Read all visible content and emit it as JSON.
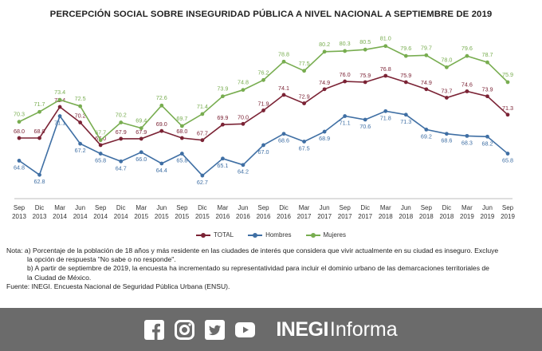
{
  "title": "PERCEPCIÓN SOCIAL SOBRE INSEGURIDAD PÚBLICA A NIVEL NACIONAL A SEPTIEMBRE DE 2019",
  "chart_data": {
    "type": "line",
    "title": "PERCEPCIÓN SOCIAL SOBRE INSEGURIDAD PÚBLICA A NIVEL NACIONAL A SEPTIEMBRE DE 2019",
    "categories": [
      [
        "Sep",
        "2013"
      ],
      [
        "Dic",
        "2013"
      ],
      [
        "Mar",
        "2014"
      ],
      [
        "Jun",
        "2014"
      ],
      [
        "Sep",
        "2014"
      ],
      [
        "Dic",
        "2014"
      ],
      [
        "Mar",
        "2015"
      ],
      [
        "Jun",
        "2015"
      ],
      [
        "Sep",
        "2015"
      ],
      [
        "Dic",
        "2015"
      ],
      [
        "Mar",
        "2016"
      ],
      [
        "Jun",
        "2016"
      ],
      [
        "Sep",
        "2016"
      ],
      [
        "Dic",
        "2016"
      ],
      [
        "Mar",
        "2017"
      ],
      [
        "Jun",
        "2017"
      ],
      [
        "Sep",
        "2017"
      ],
      [
        "Dic",
        "2017"
      ],
      [
        "Mar",
        "2018"
      ],
      [
        "Jun",
        "2018"
      ],
      [
        "Sep",
        "2018"
      ],
      [
        "Dic",
        "2018"
      ],
      [
        "Mar",
        "2019"
      ],
      [
        "Jun",
        "2019"
      ],
      [
        "Sep",
        "2019"
      ]
    ],
    "ylim": [
      60,
      83
    ],
    "legend_position": "bottom",
    "grid": false,
    "series": [
      {
        "name": "TOTAL",
        "color": "#7b2335",
        "values": [
          68.0,
          68.0,
          72.4,
          70.2,
          67.0,
          67.9,
          67.9,
          69.0,
          68.0,
          67.7,
          69.9,
          70.0,
          71.9,
          74.1,
          72.9,
          74.9,
          76.0,
          75.9,
          76.8,
          75.9,
          74.9,
          73.7,
          74.6,
          73.9,
          71.3
        ]
      },
      {
        "name": "Hombres",
        "color": "#3f6fa4",
        "values": [
          64.8,
          62.8,
          71.1,
          67.2,
          65.8,
          64.7,
          66.0,
          64.4,
          65.8,
          62.7,
          65.1,
          64.2,
          67.0,
          68.6,
          67.5,
          68.9,
          71.1,
          70.6,
          71.8,
          71.3,
          69.2,
          68.6,
          68.3,
          68.2,
          65.8
        ]
      },
      {
        "name": "Mujeres",
        "color": "#78ad50",
        "values": [
          70.3,
          71.7,
          73.4,
          72.5,
          67.7,
          70.2,
          69.4,
          72.6,
          69.7,
          71.4,
          73.9,
          74.8,
          76.2,
          78.8,
          77.5,
          80.2,
          80.3,
          80.5,
          81.0,
          79.6,
          79.7,
          78.0,
          79.6,
          78.7,
          75.9
        ]
      }
    ]
  },
  "notes": {
    "line1": "Nota: a) Porcentaje de la población de 18 años y más residente en las ciudades de interés que considera que vivir actualmente en su ciudad es inseguro. Excluye",
    "line2": "la opción de respuesta \"No sabe o no responde\".",
    "line3": "b) A partir de septiembre de 2019, la encuesta ha incrementado su representatividad para incluir el dominio urbano de las demarcaciones territoriales de",
    "line4": "la Ciudad de México.",
    "source": "Fuente: INEGI. Encuesta Nacional de Seguridad Pública Urbana (ENSU)."
  },
  "footer": {
    "brand_bold": "INEGI",
    "brand_light": "Informa",
    "icons": [
      "facebook-icon",
      "instagram-icon",
      "twitter-icon",
      "youtube-icon"
    ]
  }
}
